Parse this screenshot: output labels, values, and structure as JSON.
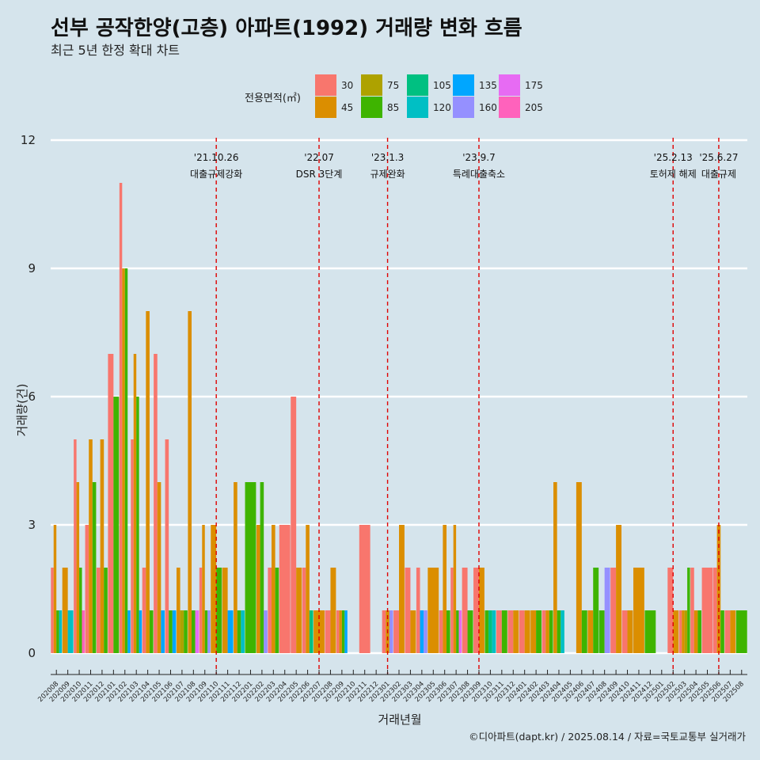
{
  "title": "선부 공작한양(고층) 아파트(1992) 거래량 변화 흐름",
  "subtitle": "최근 5년 한정 확대 차트",
  "caption": "©디아파트(dapt.kr) / 2025.08.14 / 자료=국토교통부 실거래가",
  "colors": {
    "background": "#d5e4ec",
    "grid": "#ffffff",
    "event_line": "#e00000",
    "series": {
      "30": "#F8766D",
      "45": "#DB8E00",
      "75": "#AEA200",
      "85": "#3EB400",
      "105": "#00C081",
      "120": "#00BFC4",
      "135": "#00A6FF",
      "160": "#9590FF",
      "175": "#E76BF3",
      "205": "#FF62BC"
    }
  },
  "chart_data": {
    "type": "bar",
    "xlabel": "거래년월",
    "ylabel": "거래량(건)",
    "ylim": [
      -0.5,
      12.5
    ],
    "yticks": [
      0,
      3,
      6,
      9,
      12
    ],
    "grid": true,
    "legend": {
      "title": "전용면적(㎡)",
      "position": "top",
      "entries": [
        "30",
        "45",
        "75",
        "85",
        "105",
        "120",
        "135",
        "160",
        "175",
        "205"
      ]
    },
    "categories": [
      "202008",
      "202009",
      "202010",
      "202011",
      "202012",
      "202101",
      "202102",
      "202103",
      "202104",
      "202105",
      "202106",
      "202107",
      "202108",
      "202109",
      "202110",
      "202111",
      "202112",
      "202201",
      "202202",
      "202203",
      "202204",
      "202205",
      "202206",
      "202207",
      "202208",
      "202209",
      "202210",
      "202211",
      "202212",
      "202301",
      "202302",
      "202303",
      "202304",
      "202305",
      "202306",
      "202307",
      "202308",
      "202309",
      "202310",
      "202311",
      "202312",
      "202401",
      "202402",
      "202403",
      "202404",
      "202405",
      "202406",
      "202407",
      "202408",
      "202409",
      "202410",
      "202411",
      "202412",
      "202501",
      "202502",
      "202503",
      "202504",
      "202505",
      "202506",
      "202507",
      "202508"
    ],
    "series": [
      {
        "name": "30",
        "values": [
          2,
          0,
          5,
          3,
          2,
          7,
          11,
          5,
          2,
          7,
          5,
          0,
          0,
          2,
          0,
          0,
          0,
          0,
          0,
          2,
          3,
          6,
          2,
          0,
          1,
          1,
          0,
          3,
          0,
          1,
          1,
          2,
          2,
          0,
          1,
          2,
          2,
          2,
          0,
          1,
          1,
          1,
          0,
          1,
          0,
          0,
          0,
          0,
          0,
          2,
          1,
          0,
          0,
          0,
          2,
          1,
          2,
          2,
          2,
          1,
          0
        ]
      },
      {
        "name": "45",
        "values": [
          3,
          2,
          4,
          5,
          5,
          0,
          9,
          7,
          8,
          4,
          0,
          2,
          8,
          3,
          3,
          2,
          4,
          0,
          3,
          3,
          0,
          2,
          3,
          1,
          2,
          1,
          0,
          0,
          0,
          1,
          3,
          1,
          0,
          2,
          3,
          3,
          0,
          2,
          0,
          0,
          1,
          1,
          1,
          1,
          4,
          0,
          4,
          1,
          0,
          3,
          1,
          2,
          0,
          0,
          1,
          1,
          1,
          0,
          3,
          1,
          0
        ]
      },
      {
        "name": "75",
        "values": [
          0,
          0,
          0,
          0,
          0,
          0,
          0,
          0,
          0,
          0,
          0,
          1,
          0,
          0,
          0,
          0,
          0,
          0,
          0,
          0,
          0,
          0,
          0,
          0,
          0,
          0,
          0,
          0,
          0,
          0,
          0,
          0,
          0,
          0,
          0,
          0,
          0,
          0,
          0,
          0,
          0,
          0,
          0,
          0,
          0,
          0,
          0,
          0,
          0,
          0,
          0,
          0,
          0,
          0,
          0,
          1,
          0,
          0,
          0,
          0,
          0
        ]
      },
      {
        "name": "85",
        "values": [
          1,
          0,
          2,
          4,
          2,
          6,
          9,
          6,
          1,
          0,
          1,
          1,
          1,
          1,
          2,
          0,
          1,
          4,
          4,
          2,
          0,
          0,
          0,
          0,
          0,
          1,
          0,
          0,
          0,
          0,
          0,
          0,
          0,
          0,
          1,
          1,
          1,
          0,
          1,
          1,
          0,
          0,
          1,
          1,
          1,
          0,
          1,
          2,
          1,
          0,
          0,
          0,
          1,
          0,
          0,
          2,
          1,
          0,
          1,
          0,
          1
        ]
      },
      {
        "name": "105",
        "values": [
          0,
          0,
          0,
          0,
          0,
          0,
          0,
          0,
          0,
          0,
          0,
          0,
          0,
          0,
          0,
          0,
          0,
          0,
          0,
          0,
          0,
          0,
          1,
          0,
          0,
          0,
          0,
          0,
          0,
          0,
          0,
          0,
          0,
          0,
          0,
          0,
          0,
          0,
          1,
          0,
          0,
          0,
          0,
          0,
          0,
          0,
          0,
          0,
          0,
          0,
          0,
          0,
          0,
          0,
          0,
          0,
          0,
          0,
          0,
          0,
          0
        ]
      },
      {
        "name": "120",
        "values": [
          1,
          1,
          0,
          0,
          0,
          0,
          0,
          0,
          0,
          0,
          0,
          0,
          0,
          0,
          0,
          0,
          1,
          0,
          0,
          0,
          0,
          0,
          0,
          0,
          0,
          0,
          0,
          0,
          0,
          0,
          0,
          0,
          0,
          0,
          0,
          0,
          0,
          0,
          1,
          0,
          0,
          0,
          0,
          0,
          1,
          0,
          0,
          0,
          0,
          0,
          0,
          0,
          0,
          0,
          0,
          0,
          0,
          0,
          0,
          0,
          0
        ]
      },
      {
        "name": "135",
        "values": [
          0,
          0,
          0,
          0,
          0,
          0,
          1,
          1,
          0,
          1,
          1,
          0,
          0,
          0,
          0,
          1,
          0,
          0,
          0,
          0,
          0,
          0,
          0,
          0,
          0,
          1,
          0,
          0,
          0,
          0,
          0,
          0,
          1,
          0,
          0,
          0,
          0,
          0,
          0,
          0,
          0,
          0,
          0,
          0,
          0,
          0,
          0,
          0,
          0,
          0,
          0,
          0,
          0,
          0,
          0,
          0,
          0,
          0,
          0,
          0,
          0
        ]
      },
      {
        "name": "160",
        "values": [
          0,
          0,
          0,
          0,
          0,
          0,
          0,
          0,
          0,
          0,
          0,
          0,
          0,
          1,
          0,
          0,
          0,
          0,
          1,
          0,
          0,
          0,
          0,
          0,
          0,
          0,
          0,
          0,
          0,
          1,
          0,
          0,
          1,
          0,
          0,
          0,
          0,
          0,
          0,
          0,
          0,
          0,
          0,
          0,
          0,
          0,
          0,
          0,
          2,
          0,
          0,
          0,
          0,
          0,
          0,
          0,
          0,
          0,
          0,
          0,
          0
        ]
      },
      {
        "name": "175",
        "values": [
          0,
          0,
          0,
          0,
          0,
          0,
          0,
          0,
          0,
          0,
          0,
          0,
          1,
          0,
          0,
          0,
          0,
          0,
          0,
          0,
          0,
          0,
          0,
          0,
          0,
          0,
          0,
          0,
          0,
          0,
          0,
          0,
          0,
          0,
          0,
          1,
          0,
          0,
          0,
          0,
          0,
          0,
          0,
          0,
          0,
          0,
          0,
          0,
          0,
          0,
          0,
          0,
          0,
          0,
          0,
          0,
          0,
          0,
          0,
          0,
          0
        ]
      },
      {
        "name": "205",
        "values": [
          0,
          0,
          1,
          0,
          0,
          0,
          0,
          0,
          0,
          0,
          0,
          0,
          0,
          0,
          0,
          0,
          0,
          0,
          0,
          0,
          0,
          0,
          0,
          0,
          0,
          0,
          0,
          0,
          0,
          0,
          0,
          0,
          0,
          0,
          0,
          0,
          0,
          0,
          0,
          0,
          0,
          0,
          0,
          0,
          0,
          0,
          0,
          0,
          0,
          0,
          0,
          0,
          0,
          0,
          0,
          0,
          0,
          0,
          0,
          0,
          0
        ]
      }
    ],
    "annotations": [
      {
        "x": "202110",
        "date": "'21.10.26",
        "text": "대출규제강화"
      },
      {
        "x": "202207",
        "date": "'22.07",
        "text": "DSR 3단계"
      },
      {
        "x": "202301",
        "date": "'23.1.3",
        "text": "규제완화"
      },
      {
        "x": "202309",
        "date": "'23.9.7",
        "text": "특례대출축소"
      },
      {
        "x": "202502",
        "date": "'25.2.13",
        "text": "토허제 해제"
      },
      {
        "x": "202506",
        "date": "'25.6.27",
        "text": "대출규제"
      }
    ]
  }
}
